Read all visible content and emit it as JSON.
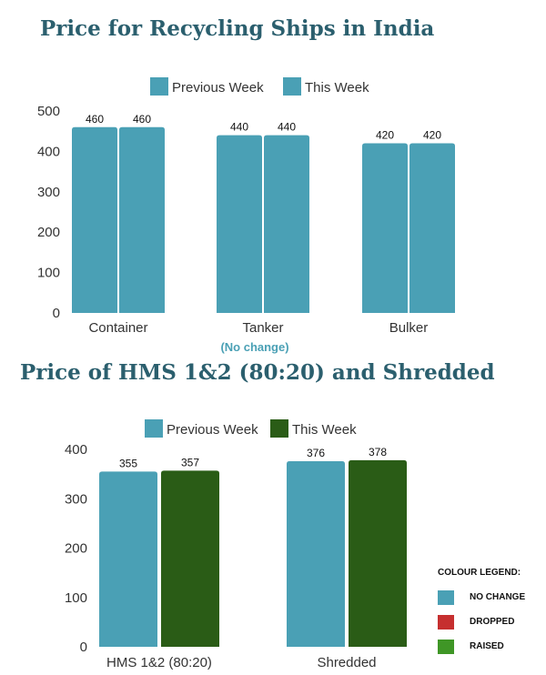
{
  "colors": {
    "previous_week": "#4aa0b5",
    "this_week_ships": "#4aa0b5",
    "this_week_hms": "#2a5c16",
    "dropped": "#c62f2f",
    "raised": "#3f9626",
    "title": "#2b5f6e"
  },
  "chart_data": [
    {
      "type": "bar",
      "title": "Price for Recycling Ships in India",
      "categories": [
        "Container",
        "Tanker",
        "Bulker"
      ],
      "series": [
        {
          "name": "Previous Week",
          "values": [
            460,
            440,
            420
          ]
        },
        {
          "name": "This Week",
          "values": [
            460,
            440,
            420
          ]
        }
      ],
      "ylim": [
        0,
        500
      ],
      "yticks": [
        0,
        100,
        200,
        300,
        400,
        500
      ],
      "annotation": "(No change)",
      "legend": "top-center",
      "grid": false
    },
    {
      "type": "bar",
      "title": "Price of HMS 1&2 (80:20) and Shredded",
      "categories": [
        "HMS 1&2 (80:20)",
        "Shredded"
      ],
      "series": [
        {
          "name": "Previous Week",
          "values": [
            355,
            376
          ]
        },
        {
          "name": "This Week",
          "values": [
            357,
            378
          ]
        }
      ],
      "ylim": [
        0,
        400
      ],
      "yticks": [
        0,
        100,
        200,
        300,
        400
      ],
      "legend": "top-center",
      "grid": false
    }
  ],
  "colour_legend": {
    "title": "COLOUR LEGEND:",
    "items": [
      {
        "label": "NO CHANGE",
        "color": "#4aa0b5"
      },
      {
        "label": "DROPPED",
        "color": "#c62f2f"
      },
      {
        "label": "RAISED",
        "color": "#3f9626"
      }
    ]
  }
}
